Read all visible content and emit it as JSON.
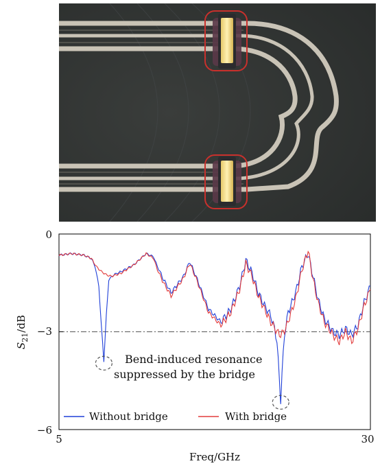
{
  "photo": {
    "description_hidden": ""
  },
  "chart_data": {
    "type": "line",
    "xlabel": "Freq/GHz",
    "ylabel_main": "S",
    "ylabel_sub": "21",
    "ylabel_unit": "/dB",
    "xlim": [
      5,
      30
    ],
    "ylim": [
      -6,
      0
    ],
    "xticks": [
      "5",
      "30"
    ],
    "yticks": [
      "0",
      "−3",
      "−6"
    ],
    "reference_line": {
      "y": -3,
      "style": "dash-dot",
      "color": "#555555"
    },
    "annotation": {
      "line1": "Bend-induced resonance",
      "line2": "suppressed by the bridge",
      "circled_points": [
        {
          "x": 8.6,
          "y": -3.9
        },
        {
          "x": 22.8,
          "y": -5.1
        }
      ]
    },
    "legend": {
      "placement": "bottom"
    },
    "series": [
      {
        "name": "Without bridge",
        "color": "#1f3fd8",
        "x": [
          5.0,
          6.0,
          7.0,
          7.6,
          7.9,
          8.2,
          8.4,
          8.6,
          8.8,
          9.0,
          9.4,
          10.0,
          11.0,
          12.0,
          12.6,
          12.9,
          13.4,
          14.0,
          15.0,
          15.5,
          16.0,
          17.0,
          18.0,
          18.8,
          19.5,
          20.0,
          20.5,
          21.0,
          21.5,
          22.0,
          22.3,
          22.5,
          22.7,
          22.8,
          22.9,
          23.1,
          23.4,
          24.0,
          24.5,
          25.0,
          25.4,
          25.8,
          26.3,
          27.0,
          27.5,
          28.0,
          28.5,
          29.0,
          29.5,
          30.0
        ],
        "values": [
          -0.65,
          -0.6,
          -0.65,
          -0.75,
          -1.0,
          -1.6,
          -2.8,
          -3.9,
          -2.5,
          -1.4,
          -1.25,
          -1.15,
          -0.95,
          -0.6,
          -0.7,
          -1.0,
          -1.4,
          -1.8,
          -1.3,
          -0.85,
          -1.3,
          -2.3,
          -2.7,
          -2.3,
          -1.6,
          -0.8,
          -1.2,
          -1.8,
          -2.2,
          -2.5,
          -2.9,
          -3.3,
          -4.5,
          -5.1,
          -4.3,
          -3.1,
          -2.4,
          -1.8,
          -1.0,
          -0.6,
          -1.3,
          -2.0,
          -2.6,
          -3.0,
          -3.1,
          -2.9,
          -3.1,
          -2.8,
          -2.1,
          -1.6
        ]
      },
      {
        "name": "With bridge",
        "color": "#e23b3b",
        "x": [
          5.0,
          6.0,
          7.0,
          7.6,
          8.0,
          8.4,
          8.8,
          9.2,
          10.0,
          11.0,
          12.0,
          12.6,
          12.9,
          13.4,
          14.0,
          15.0,
          15.5,
          16.0,
          17.0,
          18.0,
          18.8,
          19.5,
          20.0,
          20.5,
          21.0,
          21.5,
          22.0,
          22.5,
          22.8,
          23.2,
          24.0,
          24.5,
          25.0,
          25.4,
          25.8,
          26.3,
          27.0,
          27.5,
          28.0,
          28.5,
          29.0,
          29.5,
          30.0
        ],
        "values": [
          -0.65,
          -0.6,
          -0.65,
          -0.75,
          -1.0,
          -1.15,
          -1.25,
          -1.3,
          -1.2,
          -0.95,
          -0.6,
          -0.75,
          -1.1,
          -1.5,
          -1.9,
          -1.35,
          -0.9,
          -1.35,
          -2.4,
          -2.8,
          -2.4,
          -1.7,
          -0.9,
          -1.3,
          -1.9,
          -2.3,
          -2.7,
          -3.0,
          -3.1,
          -2.9,
          -2.0,
          -1.1,
          -0.5,
          -1.4,
          -2.1,
          -2.7,
          -3.1,
          -3.3,
          -3.0,
          -3.3,
          -2.9,
          -2.2,
          -1.7
        ]
      }
    ]
  }
}
